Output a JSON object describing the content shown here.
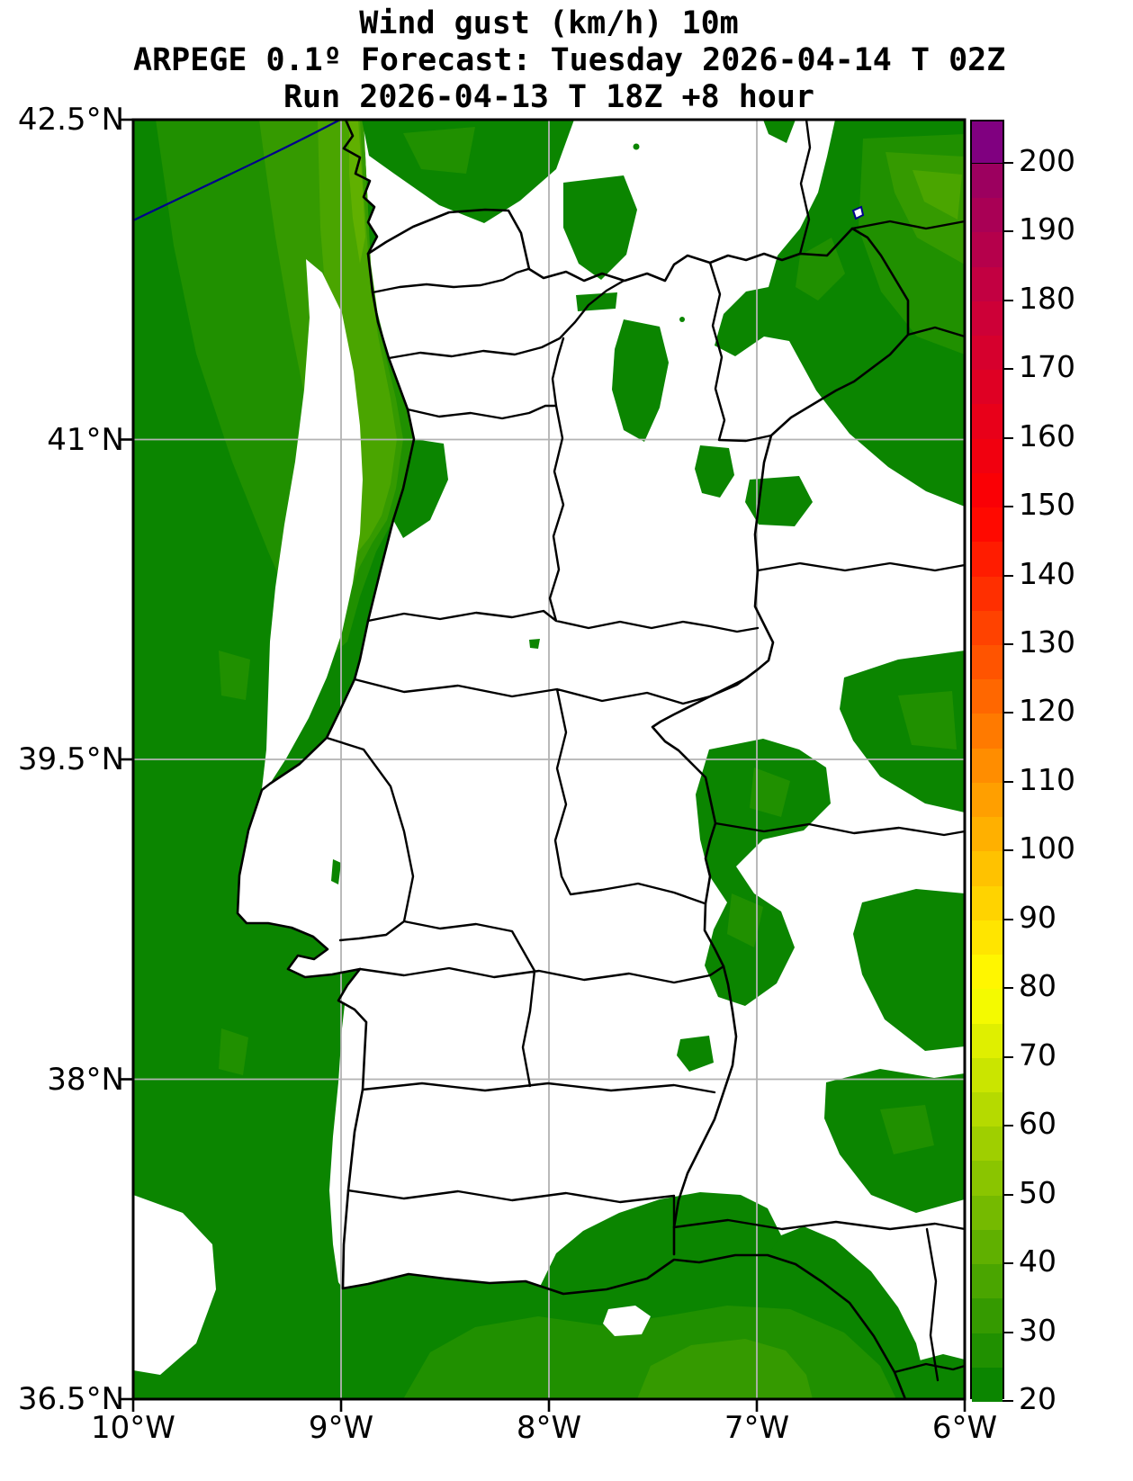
{
  "title": {
    "line1": "Wind gust (km/h) 10m",
    "line2": "ARPEGE 0.1º Forecast: Tuesday 2026-04-14 T 02Z",
    "line3": "Run 2026-04-13 T 18Z +8 hour"
  },
  "meta": {
    "variable": "Wind gust",
    "units": "km/h",
    "level": "10m",
    "model": "ARPEGE 0.1º",
    "valid_time": "Tuesday 2026-04-14 T 02Z",
    "run_time": "2026-04-13 T 18Z",
    "lead": "+8 hour"
  },
  "axes": {
    "y_range": [
      36.5,
      42.5
    ],
    "x_range": [
      -10,
      -6
    ],
    "y_ticks": [
      {
        "label": "42.5°N",
        "value": 42.5
      },
      {
        "label": "41°N",
        "value": 41
      },
      {
        "label": "39.5°N",
        "value": 39.5
      },
      {
        "label": "38°N",
        "value": 38
      },
      {
        "label": "36.5°N",
        "value": 36.5
      }
    ],
    "x_ticks": [
      {
        "label": "10°W",
        "value": -10
      },
      {
        "label": "9°W",
        "value": -9
      },
      {
        "label": "8°W",
        "value": -8
      },
      {
        "label": "7°W",
        "value": -7
      },
      {
        "label": "6°W",
        "value": -6
      }
    ]
  },
  "colorbar": {
    "min": 20,
    "max": 206,
    "segment_step": 5,
    "tick_step": 10,
    "tick_labels": [
      "20",
      "30",
      "40",
      "50",
      "60",
      "70",
      "80",
      "90",
      "100",
      "110",
      "120",
      "130",
      "140",
      "150",
      "160",
      "170",
      "180",
      "190",
      "200"
    ],
    "segments": [
      "#0b8500",
      "#209000",
      "#359a00",
      "#4aa500",
      "#60b000",
      "#75ba00",
      "#8ac500",
      "#9fcf00",
      "#b5da00",
      "#cae500",
      "#dfef00",
      "#f4fa00",
      "#fff600",
      "#ffe500",
      "#ffd300",
      "#ffc200",
      "#ffb000",
      "#ff9f00",
      "#ff8d00",
      "#ff7a00",
      "#ff6700",
      "#ff5400",
      "#ff4200",
      "#ff2f00",
      "#ff1c00",
      "#ff0900",
      "#fa0005",
      "#f1000f",
      "#e80019",
      "#df0023",
      "#d6002d",
      "#cd0037",
      "#c20041",
      "#b5004b",
      "#a90055",
      "#9c005f",
      "#800080"
    ]
  },
  "map": {
    "colors": {
      "land": "#ffffff",
      "ocean_levels": [
        "#0b8500",
        "#209000",
        "#359a00",
        "#4aa500",
        "#60b000"
      ],
      "border": "#000000",
      "grid": "#b3b3b3",
      "blue_boundary": "#00008b"
    }
  }
}
